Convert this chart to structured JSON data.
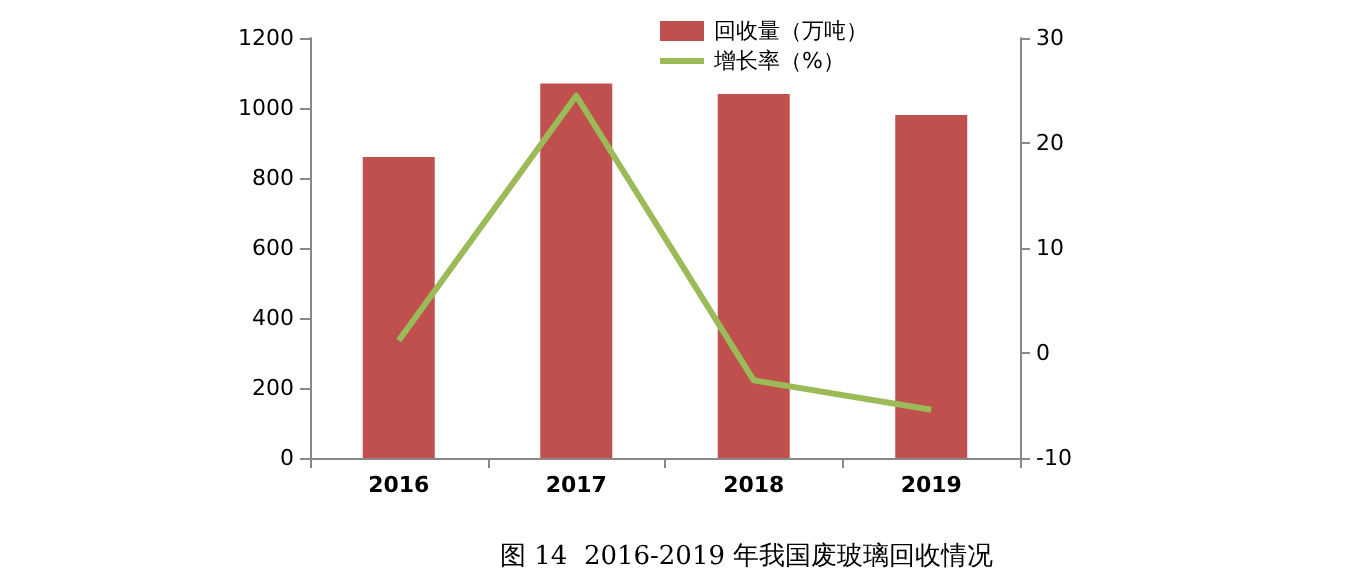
{
  "chart_data": {
    "type": "bar",
    "title": "图 14  2016-2019 年我国废玻璃回收情况",
    "categories": [
      "2016",
      "2017",
      "2018",
      "2019"
    ],
    "series": [
      {
        "name": "回收量（万吨）",
        "color": "#c0504d",
        "values": [
          860,
          1070,
          1040,
          980
        ]
      },
      {
        "name": "增长率（%）",
        "type": "line",
        "axis": "y2",
        "color": "#9bbb59",
        "values": [
          1.2,
          24.5,
          -2.6,
          -5.4
        ]
      }
    ],
    "ylim": [
      0,
      1200
    ],
    "yticks": [
      0,
      200,
      400,
      600,
      800,
      1000,
      1200
    ],
    "y2lim": [
      -10,
      30
    ],
    "y2ticks": [
      -10,
      0,
      10,
      20,
      30
    ],
    "legend": "top right",
    "marker": "none",
    "grid": false
  }
}
